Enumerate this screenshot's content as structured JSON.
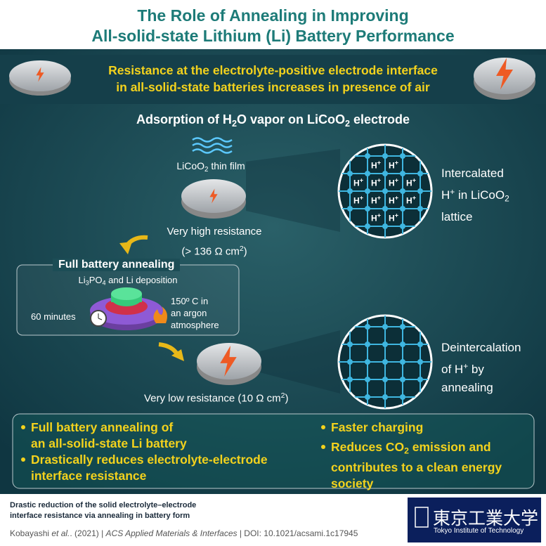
{
  "header": {
    "title": [
      "The Role of Annealing in Improving",
      "All-solid-state Lithium (Li) Battery Performance"
    ]
  },
  "banner": {
    "lines": [
      "Resistance at the electrolyte-positive electrode interface",
      "in all-solid-state batteries increases in presence of air"
    ]
  },
  "adsorption": {
    "heading": [
      "Adsorption of H",
      "2",
      "O vapor on LiCoO",
      "2",
      " electrode"
    ],
    "film": [
      "LiCoO",
      "2",
      " thin film"
    ]
  },
  "high_resistance": {
    "lines": [
      "Very high resistance",
      "(> 136 Ω cm",
      "2",
      ")"
    ]
  },
  "lattice": {
    "ion": "H",
    "charge": "+",
    "intercalated": [
      "Intercalated",
      "H",
      "+",
      " in LiCoO",
      "2",
      "lattice"
    ],
    "deintercalation": [
      "Deintercalation",
      "of H",
      "+",
      " by",
      "annealing"
    ]
  },
  "annealing": {
    "title": "Full battery annealing",
    "deposition": [
      "Li",
      "3",
      "PO",
      "4",
      " and Li deposition"
    ],
    "time": "60 minutes",
    "condition": [
      "150º C in",
      "an argon",
      "atmosphere"
    ]
  },
  "low_resistance": [
    "Very low resistance (10 Ω cm",
    "2",
    ")"
  ],
  "summary": {
    "left": [
      [
        "Full battery annealing of",
        "an all-solid-state Li battery"
      ],
      [
        "Drastically reduces electrolyte-electrode",
        "interface resistance"
      ]
    ],
    "right": {
      "first": "Faster charging",
      "second": [
        "Reduces CO",
        "2",
        " emission and",
        "contributes to a clean energy",
        "society"
      ]
    }
  },
  "footer": {
    "caption": [
      "Drastic reduction of the solid electrolyte–electrode",
      "interface resistance via annealing in battery form"
    ],
    "citation": [
      "Kobayashi ",
      "et al.",
      ". (2021) | ",
      "ACS Applied Materials & Interfaces",
      " | DOI: 10.1021/acsami.1c17945"
    ],
    "logo": [
      "東京工業大学",
      "Tokyo Institute of Technology"
    ]
  }
}
